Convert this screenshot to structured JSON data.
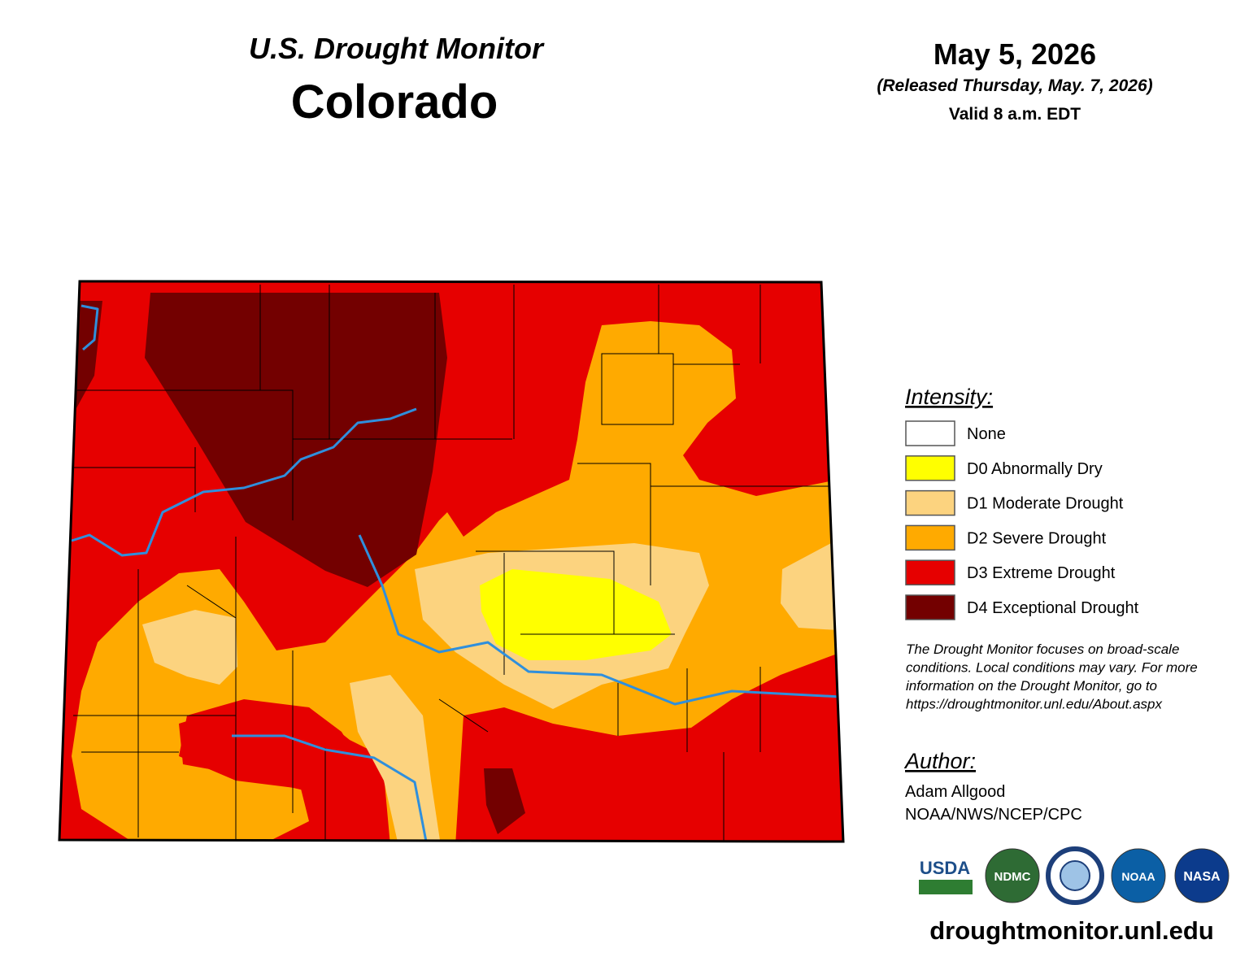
{
  "header": {
    "title": "U.S. Drought Monitor",
    "state": "Colorado"
  },
  "date_block": {
    "date": "May 5, 2026",
    "released": "(Released Thursday, May. 7, 2026)",
    "valid": "Valid 8 a.m. EDT"
  },
  "legend": {
    "title": "Intensity:",
    "items": [
      {
        "label": "None",
        "color": "#ffffff"
      },
      {
        "label": "D0 Abnormally Dry",
        "color": "#ffff00"
      },
      {
        "label": "D1 Moderate Drought",
        "color": "#fcd37f"
      },
      {
        "label": "D2 Severe Drought",
        "color": "#ffaa00"
      },
      {
        "label": "D3 Extreme Drought",
        "color": "#e60000"
      },
      {
        "label": "D4 Exceptional Drought",
        "color": "#730000"
      }
    ]
  },
  "disclaimer": [
    "The Drought Monitor focuses on broad-scale",
    "conditions. Local conditions may vary. For more",
    "information on the Drought Monitor, go to",
    "https://droughtmonitor.unl.edu/About.aspx"
  ],
  "author": {
    "title": "Author:",
    "name": "Adam Allgood",
    "org": "NOAA/NWS/NCEP/CPC"
  },
  "logos": [
    "USDA",
    "NDMC",
    "NOAA",
    "NASA"
  ],
  "website": "droughtmonitor.unl.edu"
}
